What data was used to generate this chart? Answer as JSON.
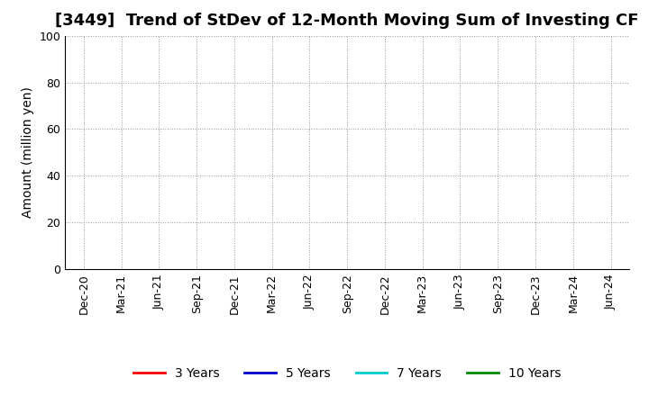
{
  "title": "[3449]  Trend of StDev of 12-Month Moving Sum of Investing CF",
  "ylabel": "Amount (million yen)",
  "ylim": [
    0,
    100
  ],
  "yticks": [
    0,
    20,
    40,
    60,
    80,
    100
  ],
  "x_labels": [
    "Dec-20",
    "Mar-21",
    "Jun-21",
    "Sep-21",
    "Dec-21",
    "Mar-22",
    "Jun-22",
    "Sep-22",
    "Dec-22",
    "Mar-23",
    "Jun-23",
    "Sep-23",
    "Dec-23",
    "Mar-24",
    "Jun-24"
  ],
  "background_color": "#ffffff",
  "grid_color": "#999999",
  "legend_entries": [
    {
      "label": "3 Years",
      "color": "#ff0000"
    },
    {
      "label": "5 Years",
      "color": "#0000cc"
    },
    {
      "label": "7 Years",
      "color": "#00cccc"
    },
    {
      "label": "10 Years",
      "color": "#008800"
    }
  ],
  "title_fontsize": 13,
  "axis_fontsize": 10,
  "tick_fontsize": 9,
  "legend_fontsize": 10
}
